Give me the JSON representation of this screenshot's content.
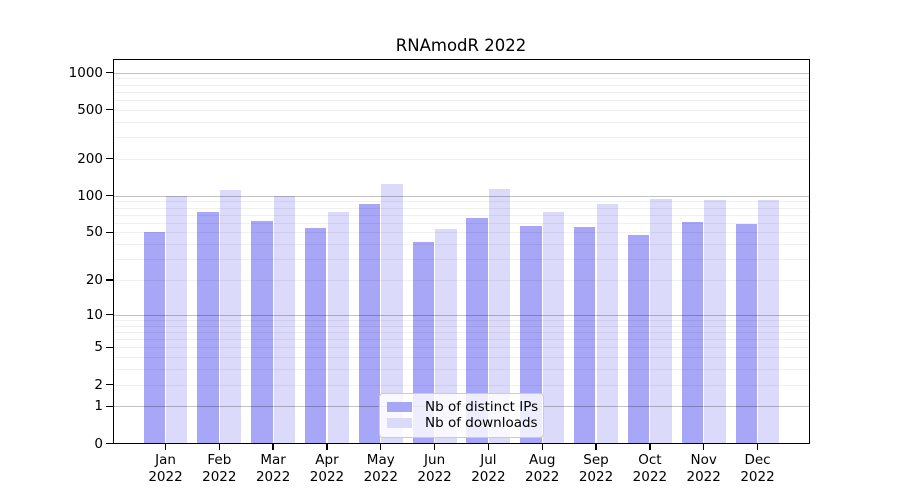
{
  "title": "RNAmodR 2022",
  "chart_data": {
    "type": "bar",
    "scale": "log1p",
    "title": "RNAmodR 2022",
    "categories": [
      "Jan",
      "Feb",
      "Mar",
      "Apr",
      "May",
      "Jun",
      "Jul",
      "Aug",
      "Sep",
      "Oct",
      "Nov",
      "Dec"
    ],
    "year_label": "2022",
    "series": [
      {
        "name": "Nb of distinct IPs",
        "color": "#a8a6f6",
        "values": [
          50,
          73,
          62,
          54,
          85,
          42,
          66,
          56,
          55,
          48,
          61,
          59
        ]
      },
      {
        "name": "Nb of downloads",
        "color": "#dcdafa",
        "values": [
          100,
          112,
          100,
          73,
          125,
          53,
          114,
          73,
          86,
          94,
          93,
          92
        ]
      }
    ],
    "yticks": [
      0,
      1,
      2,
      5,
      10,
      20,
      50,
      100,
      200,
      500,
      1000
    ],
    "ylim": [
      0,
      1300
    ],
    "grid": "on",
    "grid_major": [
      1,
      10,
      100,
      1000
    ],
    "grid_minor": [
      2,
      3,
      4,
      5,
      6,
      7,
      8,
      9,
      20,
      30,
      40,
      50,
      60,
      70,
      80,
      90,
      200,
      300,
      400,
      500,
      600,
      700,
      800,
      900
    ],
    "legend_position": "bottom-center",
    "colors": {
      "background": "#ffffff",
      "spine": "#000000",
      "major_grid": "rgba(0,0,0,0.24)",
      "minor_grid": "rgba(0,0,0,0.06)",
      "legend_border": "#cccccc"
    }
  }
}
